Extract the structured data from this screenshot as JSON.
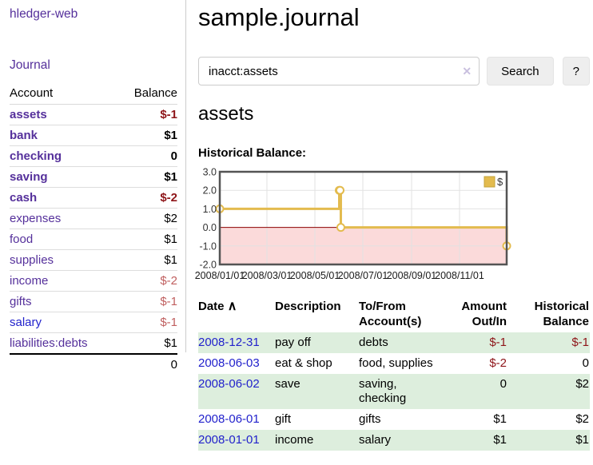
{
  "brand": "hledger-web",
  "nav": {
    "journal": "Journal"
  },
  "sidebar": {
    "columns": {
      "account": "Account",
      "balance": "Balance"
    },
    "accounts": [
      {
        "name": "assets",
        "indent": 1,
        "bold": true,
        "balance": "$-1",
        "balance_style": "neg-strong"
      },
      {
        "name": "bank",
        "indent": 2,
        "bold": true,
        "balance": "$1",
        "balance_style": "pos"
      },
      {
        "name": "checking",
        "indent": 3,
        "bold": true,
        "balance": "0",
        "balance_style": "pos"
      },
      {
        "name": "saving",
        "indent": 3,
        "bold": true,
        "balance": "$1",
        "balance_style": "pos"
      },
      {
        "name": "cash",
        "indent": 2,
        "bold": true,
        "balance": "$-2",
        "balance_style": "neg-strong"
      },
      {
        "name": "expenses",
        "indent": 1,
        "bold": false,
        "balance": "$2",
        "balance_style": "pos"
      },
      {
        "name": "food",
        "indent": 2,
        "bold": false,
        "balance": "$1",
        "balance_style": "pos"
      },
      {
        "name": "supplies",
        "indent": 2,
        "bold": false,
        "balance": "$1",
        "balance_style": "pos"
      },
      {
        "name": "income",
        "indent": 1,
        "bold": false,
        "balance": "$-2",
        "balance_style": "neg-soft"
      },
      {
        "name": "gifts",
        "indent": 2,
        "bold": false,
        "balance": "$-1",
        "balance_style": "neg-soft"
      },
      {
        "name": "salary",
        "indent": 2,
        "bold": false,
        "link_color": "blue",
        "balance": "$-1",
        "balance_style": "neg-soft"
      },
      {
        "name": "liabilities:debts",
        "indent": 1,
        "bold": false,
        "balance": "$1",
        "balance_style": "pos"
      }
    ],
    "total": "0"
  },
  "header": {
    "title": "sample.journal"
  },
  "search": {
    "value": "inacct:assets",
    "clear_icon": "✕",
    "button_label": "Search",
    "help_label": "?"
  },
  "account_page": {
    "title": "assets",
    "chart_label": "Historical Balance:"
  },
  "chart_data": {
    "type": "line",
    "title": "Historical Balance:",
    "step": true,
    "ylim": [
      -2,
      3
    ],
    "x_range_days": [
      0,
      365
    ],
    "grid": true,
    "legend": {
      "label": "$",
      "position": "top-right"
    },
    "y_ticks": [
      {
        "label": "3.0",
        "value": 3
      },
      {
        "label": "2.0",
        "value": 2
      },
      {
        "label": "1.0",
        "value": 1
      },
      {
        "label": "0.0",
        "value": 0
      },
      {
        "label": "-1.0",
        "value": -1
      },
      {
        "label": "-2.0",
        "value": -2
      }
    ],
    "x_ticks": [
      {
        "label": "2008/01/01",
        "day": 0
      },
      {
        "label": "2008/03/01",
        "day": 60
      },
      {
        "label": "2008/05/01",
        "day": 121
      },
      {
        "label": "2008/07/01",
        "day": 182
      },
      {
        "label": "2008/09/01",
        "day": 244
      },
      {
        "label": "2008/11/01",
        "day": 305
      }
    ],
    "series": [
      {
        "name": "$",
        "points": [
          {
            "date": "2008-01-01",
            "day": 0,
            "value": 1
          },
          {
            "date": "2008-06-01",
            "day": 152,
            "value": 2
          },
          {
            "date": "2008-06-02",
            "day": 153,
            "value": 2
          },
          {
            "date": "2008-06-03",
            "day": 154,
            "value": 0
          },
          {
            "date": "2008-12-31",
            "day": 365,
            "value": -1
          }
        ]
      }
    ],
    "colors": {
      "line": "#e3bb4e",
      "marker_fill": "#ffffff",
      "negative_fill": "#fbdada",
      "zero_line": "#8b0000",
      "grid": "#e2e2e2",
      "border": "#545454",
      "tick_text": "#333333"
    }
  },
  "register": {
    "columns": {
      "date": "Date",
      "sort_indicator": "∧",
      "description": "Description",
      "accounts": "To/From Account(s)",
      "amount": "Amount Out/In",
      "balance": "Historical Balance"
    },
    "rows": [
      {
        "date": "2008-12-31",
        "description": "pay off",
        "accounts": "debts",
        "amount": "$-1",
        "amount_negative": true,
        "balance": "$-1",
        "balance_negative": true,
        "shade": true
      },
      {
        "date": "2008-06-03",
        "description": "eat & shop",
        "accounts": "food, supplies",
        "amount": "$-2",
        "amount_negative": true,
        "balance": "0",
        "balance_negative": false,
        "shade": false
      },
      {
        "date": "2008-06-02",
        "description": "save",
        "accounts": "saving, checking",
        "amount": "0",
        "amount_negative": false,
        "balance": "$2",
        "balance_negative": false,
        "shade": true
      },
      {
        "date": "2008-06-01",
        "description": "gift",
        "accounts": "gifts",
        "amount": "$1",
        "amount_negative": false,
        "balance": "$2",
        "balance_negative": false,
        "shade": false
      },
      {
        "date": "2008-01-01",
        "description": "income",
        "accounts": "salary",
        "amount": "$1",
        "amount_negative": false,
        "balance": "$1",
        "balance_negative": false,
        "shade": true
      }
    ]
  },
  "colors": {
    "link_purple": "#55309b",
    "link_blue": "#2222cc",
    "negative_strong": "#8e1519",
    "negative_soft": "#c05f5f",
    "row_stripe_green": "#ddeedd",
    "chart_accent_gold": "#e3bb4e"
  }
}
